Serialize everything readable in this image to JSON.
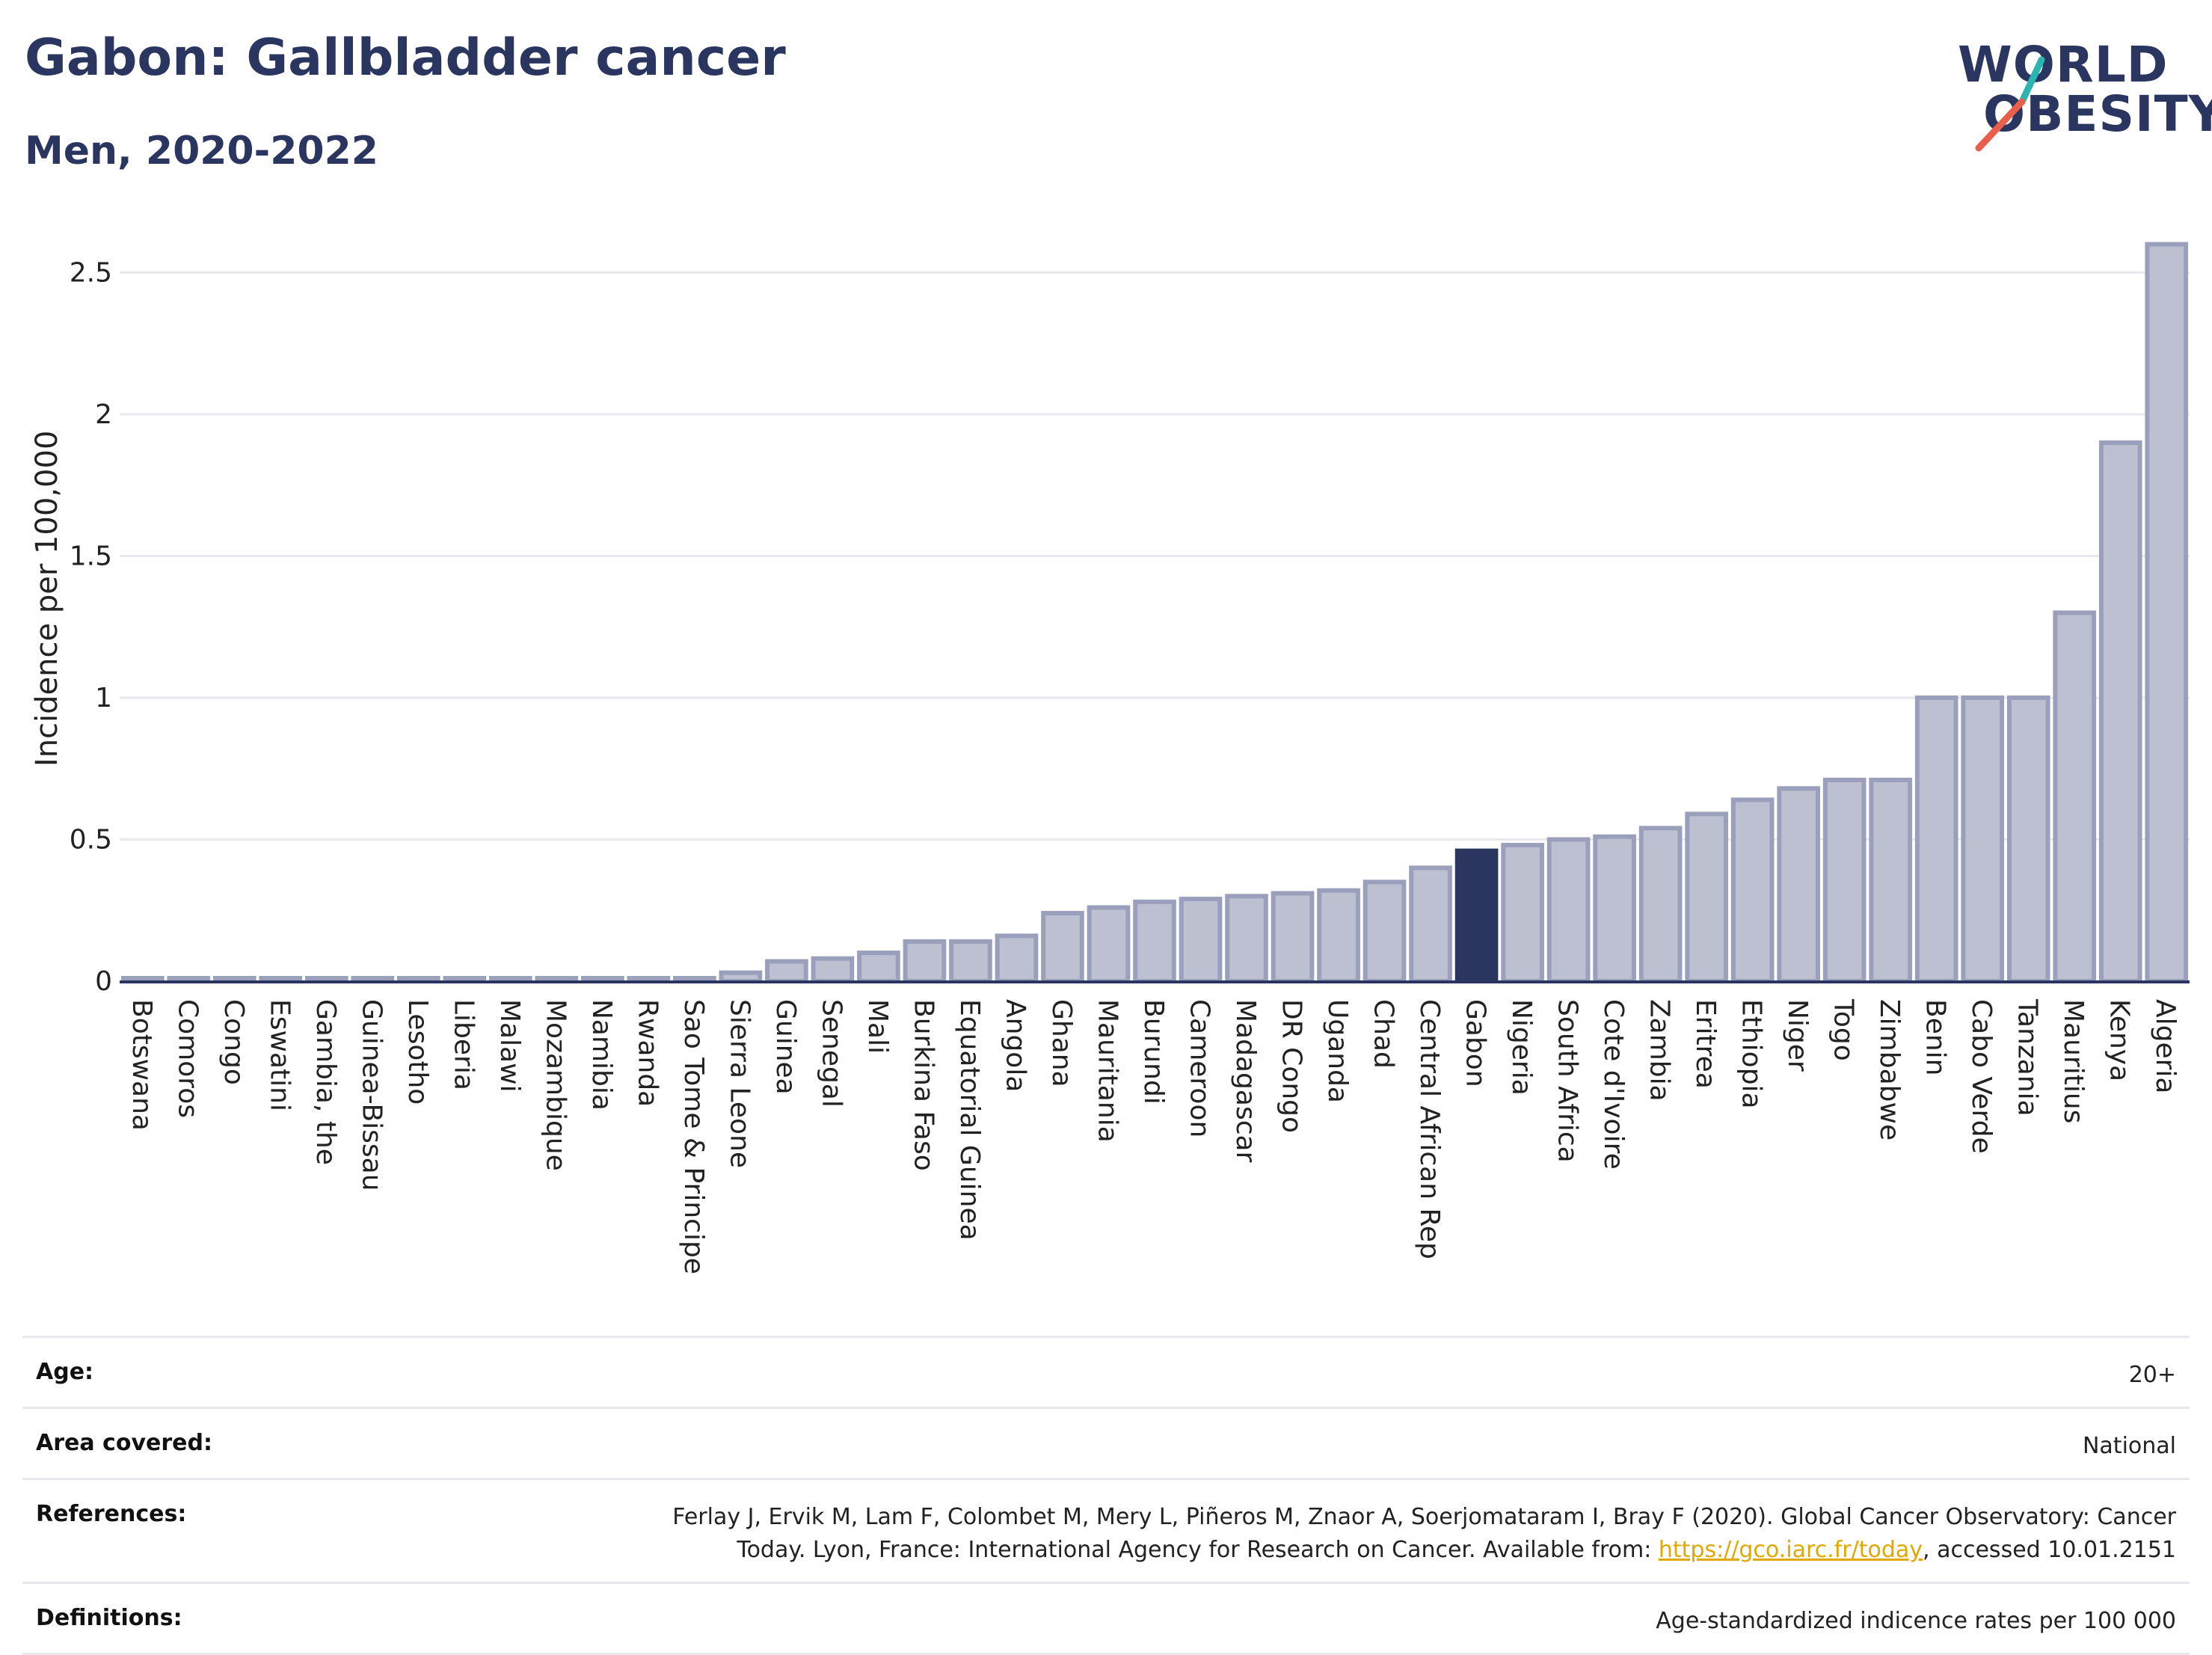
{
  "header": {
    "title": "Gabon: Gallbladder cancer",
    "subtitle": "Men, 2020-2022"
  },
  "logo": {
    "line1": "WORLD",
    "line2": "OBESITY",
    "accent_colors": [
      "#2bb5b0",
      "#e8604c"
    ]
  },
  "colors": {
    "bar_default": "#bcc0d0",
    "bar_border": "#9aa0bb",
    "bar_highlight": "#2b3660",
    "title": "#2b3660",
    "grid": "#e8e9ef"
  },
  "chart_data": {
    "type": "bar",
    "ylabel": "Incidence per 100,000",
    "xlabel": "",
    "ylim": [
      0,
      2.7
    ],
    "yticks": [
      0,
      0.5,
      1,
      1.5,
      2,
      2.5
    ],
    "ytick_labels": [
      "0",
      "0.5",
      "1",
      "1.5",
      "2",
      "2.5"
    ],
    "grid": true,
    "highlight": "Gabon",
    "categories": [
      "Botswana",
      "Comoros",
      "Congo",
      "Eswatini",
      "Gambia, the",
      "Guinea-Bissau",
      "Lesotho",
      "Liberia",
      "Malawi",
      "Mozambique",
      "Namibia",
      "Rwanda",
      "Sao Tome & Principe",
      "Sierra Leone",
      "Guinea",
      "Senegal",
      "Mali",
      "Burkina Faso",
      "Equatorial Guinea",
      "Angola",
      "Ghana",
      "Mauritania",
      "Burundi",
      "Cameroon",
      "Madagascar",
      "DR Congo",
      "Uganda",
      "Chad",
      "Central African Rep",
      "Gabon",
      "Nigeria",
      "South Africa",
      "Cote d'Ivoire",
      "Zambia",
      "Eritrea",
      "Ethiopia",
      "Niger",
      "Togo",
      "Zimbabwe",
      "Benin",
      "Cabo Verde",
      "Tanzania",
      "Mauritius",
      "Kenya",
      "Algeria"
    ],
    "values": [
      0.01,
      0.01,
      0.01,
      0.01,
      0.01,
      0.01,
      0.01,
      0.01,
      0.01,
      0.01,
      0.01,
      0.01,
      0.01,
      0.03,
      0.07,
      0.08,
      0.1,
      0.14,
      0.14,
      0.16,
      0.24,
      0.26,
      0.28,
      0.29,
      0.3,
      0.31,
      0.32,
      0.35,
      0.4,
      0.46,
      0.48,
      0.5,
      0.51,
      0.54,
      0.59,
      0.64,
      0.68,
      0.71,
      0.71,
      1.0,
      1.0,
      1.0,
      1.3,
      1.9,
      2.6
    ]
  },
  "metadata": {
    "rows": [
      {
        "label": "Age:",
        "value": "20+"
      },
      {
        "label": "Area covered:",
        "value": "National"
      },
      {
        "label": "References:",
        "value_line1": "Ferlay J, Ervik M, Lam F, Colombet M, Mery L, Piñeros M, Znaor A, Soerjomataram I, Bray F (2020). Global Cancer Observatory: Cancer",
        "value_line2_prefix": "Today. Lyon, France: International Agency for Research on Cancer. Available from: ",
        "link_text": "https://gco.iarc.fr/today",
        "value_line2_suffix": ", accessed 10.01.2151"
      },
      {
        "label": "Definitions:",
        "value": "Age-standardized indicence rates per 100 000"
      }
    ]
  }
}
